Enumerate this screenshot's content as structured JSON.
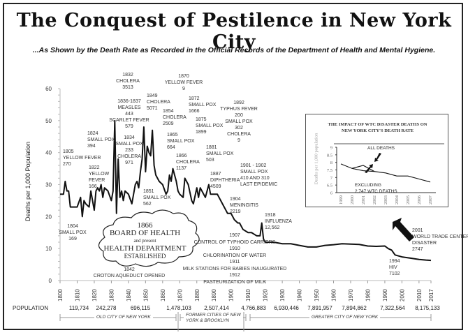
{
  "title": "The Conquest of Pestilence in New York City",
  "subtitle": "...As Shown by the Death Rate as Recorded in the Official Records of the Department of Health and Mental Hygiene.",
  "chart_data": {
    "type": "line",
    "title": "The Conquest of Pestilence in New York City",
    "xlabel": "",
    "ylabel": "Deaths per 1,000 Population",
    "ylim": [
      0,
      60
    ],
    "xlim": [
      1800,
      2017
    ],
    "yticks": [
      "0",
      "10",
      "20",
      "30",
      "40",
      "50",
      "60"
    ],
    "xticks": [
      "1800",
      "1810",
      "1820",
      "1830",
      "1840",
      "1850",
      "1860",
      "1870",
      "1880",
      "1890",
      "1900",
      "1910",
      "1920",
      "1930",
      "1940",
      "1950",
      "1960",
      "1970",
      "1980",
      "1990",
      "2000",
      "2010",
      "2017"
    ],
    "grid": false,
    "series": [
      {
        "name": "Death rate",
        "x": [
          1800,
          1802,
          1803,
          1804,
          1805,
          1806,
          1808,
          1810,
          1812,
          1813,
          1814,
          1815,
          1817,
          1818,
          1820,
          1821,
          1822,
          1823,
          1824,
          1825,
          1826,
          1828,
          1830,
          1831,
          1832,
          1833,
          1834,
          1835,
          1836,
          1837,
          1838,
          1840,
          1842,
          1844,
          1845,
          1846,
          1847,
          1848,
          1849,
          1850,
          1851,
          1852,
          1853,
          1854,
          1855,
          1856,
          1858,
          1860,
          1862,
          1863,
          1864,
          1865,
          1866,
          1867,
          1868,
          1869,
          1870,
          1872,
          1873,
          1875,
          1877,
          1878,
          1880,
          1881,
          1882,
          1884,
          1885,
          1887,
          1888,
          1890,
          1892,
          1893,
          1895,
          1897,
          1898,
          1900,
          1902,
          1904,
          1905,
          1907,
          1910,
          1912,
          1915,
          1917,
          1918,
          1919,
          1920,
          1925,
          1930,
          1935,
          1940,
          1945,
          1950,
          1955,
          1960,
          1965,
          1970,
          1975,
          1980,
          1985,
          1990,
          1992,
          1994,
          1996,
          2000,
          2005,
          2010,
          2014,
          2017
        ],
        "values": [
          27,
          27,
          31,
          28,
          28,
          23,
          23,
          23,
          26,
          20,
          25,
          24,
          23,
          28,
          22,
          28,
          29,
          28,
          30,
          26,
          29,
          28,
          25,
          28,
          50,
          21,
          38,
          26,
          28,
          25,
          28,
          27,
          24,
          30,
          31,
          29,
          34,
          38,
          48,
          34,
          42,
          40,
          39,
          47,
          36,
          33,
          31,
          30,
          27,
          28,
          33,
          31,
          35,
          33,
          31,
          28,
          27,
          26,
          32,
          30,
          25,
          24,
          29,
          26,
          29,
          27,
          26,
          30,
          27,
          27,
          27,
          26,
          24,
          22,
          21,
          21,
          19,
          18,
          18,
          16,
          15,
          15,
          14,
          14,
          18,
          13,
          12,
          12,
          11.5,
          11.5,
          11,
          10.5,
          10.5,
          11,
          11.2,
          11.5,
          11.4,
          11.3,
          10.8,
          10.7,
          10.8,
          10,
          9.5,
          8,
          7.4,
          7,
          6.6,
          6.4,
          6.3
        ]
      }
    ],
    "annotations": [
      {
        "lines": [
          "1832",
          "CHOLERA",
          "3513"
        ]
      },
      {
        "lines": [
          "1870",
          "YELLOW FEVER",
          "9"
        ]
      },
      {
        "lines": [
          "1836-1837",
          "MEASLES",
          "443",
          "SCARLET FEVER",
          "579"
        ]
      },
      {
        "lines": [
          "1849",
          "CHOLERA",
          "5071"
        ]
      },
      {
        "lines": [
          "1854",
          "CHOLERA",
          "2509"
        ]
      },
      {
        "lines": [
          "1872",
          "SMALL POX",
          "1666"
        ]
      },
      {
        "lines": [
          "1875",
          "SMALL POX",
          "1899"
        ]
      },
      {
        "lines": [
          "1892",
          "TYPHUS FEVER",
          "200",
          "SMALL POX",
          "302",
          "CHOLERA",
          "9"
        ]
      },
      {
        "lines": [
          "1824",
          "SMALL POX",
          "394"
        ]
      },
      {
        "lines": [
          "1834",
          "SMALL POX",
          "233",
          "CHOLERA",
          "971"
        ]
      },
      {
        "lines": [
          "1865",
          "SMALL POX",
          "664"
        ]
      },
      {
        "lines": [
          "1881",
          "SMALL POX",
          "503"
        ]
      },
      {
        "lines": [
          "1805",
          "YELLOW FEVER",
          "270"
        ]
      },
      {
        "lines": [
          "1866",
          "CHOLERA",
          "1137"
        ]
      },
      {
        "lines": [
          "1822",
          "YELLOW",
          "FEVER",
          "166"
        ]
      },
      {
        "lines": [
          "1887",
          "DIPHTHERIA",
          "4509"
        ]
      },
      {
        "lines": [
          "1901 - 1902",
          "SMALL POX",
          "410 AND 310",
          "LAST EPIDEMIC"
        ]
      },
      {
        "lines": [
          "1851",
          "SMALL POX",
          "562"
        ]
      },
      {
        "lines": [
          "1904",
          "MENINGITIS",
          "2219"
        ]
      },
      {
        "lines": [
          "1918",
          "INFLUENZA",
          "12,562"
        ]
      },
      {
        "lines": [
          "1804",
          "SMALL POX",
          "169"
        ]
      },
      {
        "lines": [
          "1907",
          "CONTROL OF TYPHOID CARRIERS",
          "1910",
          "CHLORINATION OF WATER",
          "1911",
          "MILK STATIONS FOR BABIES INAUGURATED",
          "1912",
          "PASTEURIZATION OF MILK"
        ]
      },
      {
        "lines": [
          "1842",
          "CROTON AQUEDUCT OPENED"
        ]
      },
      {
        "lines": [
          "2001",
          "WORLD TRADE CENTER",
          "DISASTER",
          "2747"
        ]
      },
      {
        "lines": [
          "1994",
          "HIV",
          "7102"
        ]
      }
    ],
    "cloud": {
      "year": "1866",
      "line1": "BOARD OF HEALTH",
      "line2": "and present",
      "line3": "HEALTH DEPARTMENT",
      "line4": "ESTABLISHED"
    }
  },
  "inset": {
    "type": "line",
    "title_line1": "THE IMPACT OF WTC DISASTER DEATHS ON",
    "title_line2": "NEW YORK CITY'S DEATH RATE",
    "ylabel": "Deaths per 1,000 population",
    "ylim": [
      6,
      9
    ],
    "yticks": [
      "6",
      "6.5",
      "7",
      "7.5",
      "8",
      "8.5",
      "9"
    ],
    "xticks": [
      "1999",
      "2000",
      "2001",
      "2002",
      "2003",
      "2004",
      "2005",
      "2006",
      "2007"
    ],
    "series": [
      {
        "name": "ALL DEATHS",
        "x": [
          1999,
          2000,
          2001,
          2002,
          2003,
          2004,
          2005,
          2006,
          2007
        ],
        "values": [
          7.9,
          7.6,
          7.8,
          7.4,
          7.3,
          7.1,
          7.1,
          6.9,
          6.7
        ]
      },
      {
        "name": "EXCLUDING 2,747 WTC DEATHS",
        "x": [
          2000,
          2001,
          2002
        ],
        "values": [
          7.6,
          7.45,
          7.4
        ]
      }
    ],
    "label_all": "ALL DEATHS",
    "label_excl1": "EXCLUDING",
    "label_excl2": "2,747 WTC DEATHS"
  },
  "population": {
    "label": "POPULATION",
    "values": [
      "119,734",
      "242,278",
      "696,115",
      "1,478,103",
      "2,507,414",
      "4,766,883",
      "6,930,446",
      "7,891,957",
      "7,894,862",
      "7,322,564",
      "8,175,133"
    ]
  },
  "periods": [
    {
      "line1": "OLD CITY OF NEW YORK"
    },
    {
      "line1": "FORMER CITIES OF NEW",
      "line2": "YORK & BROOKLYN"
    },
    {
      "line1": "GREATER  CITY OF NEW YORK"
    }
  ]
}
